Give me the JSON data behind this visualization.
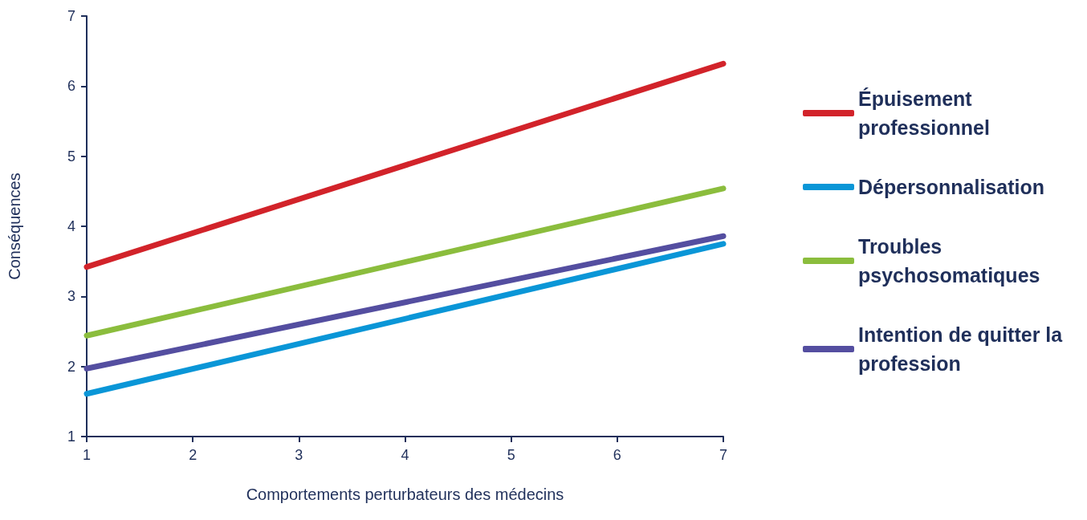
{
  "chart_data": {
    "type": "line",
    "xlabel": "Comportements perturbateurs des médecins",
    "ylabel": "Conséquences",
    "xlim": [
      1,
      7
    ],
    "xticks": [
      1,
      2,
      3,
      4,
      5,
      6,
      7
    ],
    "ylim": [
      1,
      7
    ],
    "yticks": [
      1,
      2,
      3,
      4,
      5,
      6,
      7
    ],
    "x": [
      1,
      7
    ],
    "series": [
      {
        "name": "Épuisement professionnel",
        "color": "#d2232a",
        "values": [
          3.42,
          6.32
        ]
      },
      {
        "name": "Dépersonnalisation",
        "color": "#0a96d7",
        "values": [
          1.61,
          3.75
        ]
      },
      {
        "name": "Troubles psychosomatiques",
        "color": "#8bbd3d",
        "values": [
          2.44,
          4.54
        ]
      },
      {
        "name": "Intention de quitter la profession",
        "color": "#544ea0",
        "values": [
          1.97,
          3.86
        ]
      }
    ],
    "grid": false,
    "legend": "right",
    "marker": "none",
    "line_style": "solid"
  }
}
